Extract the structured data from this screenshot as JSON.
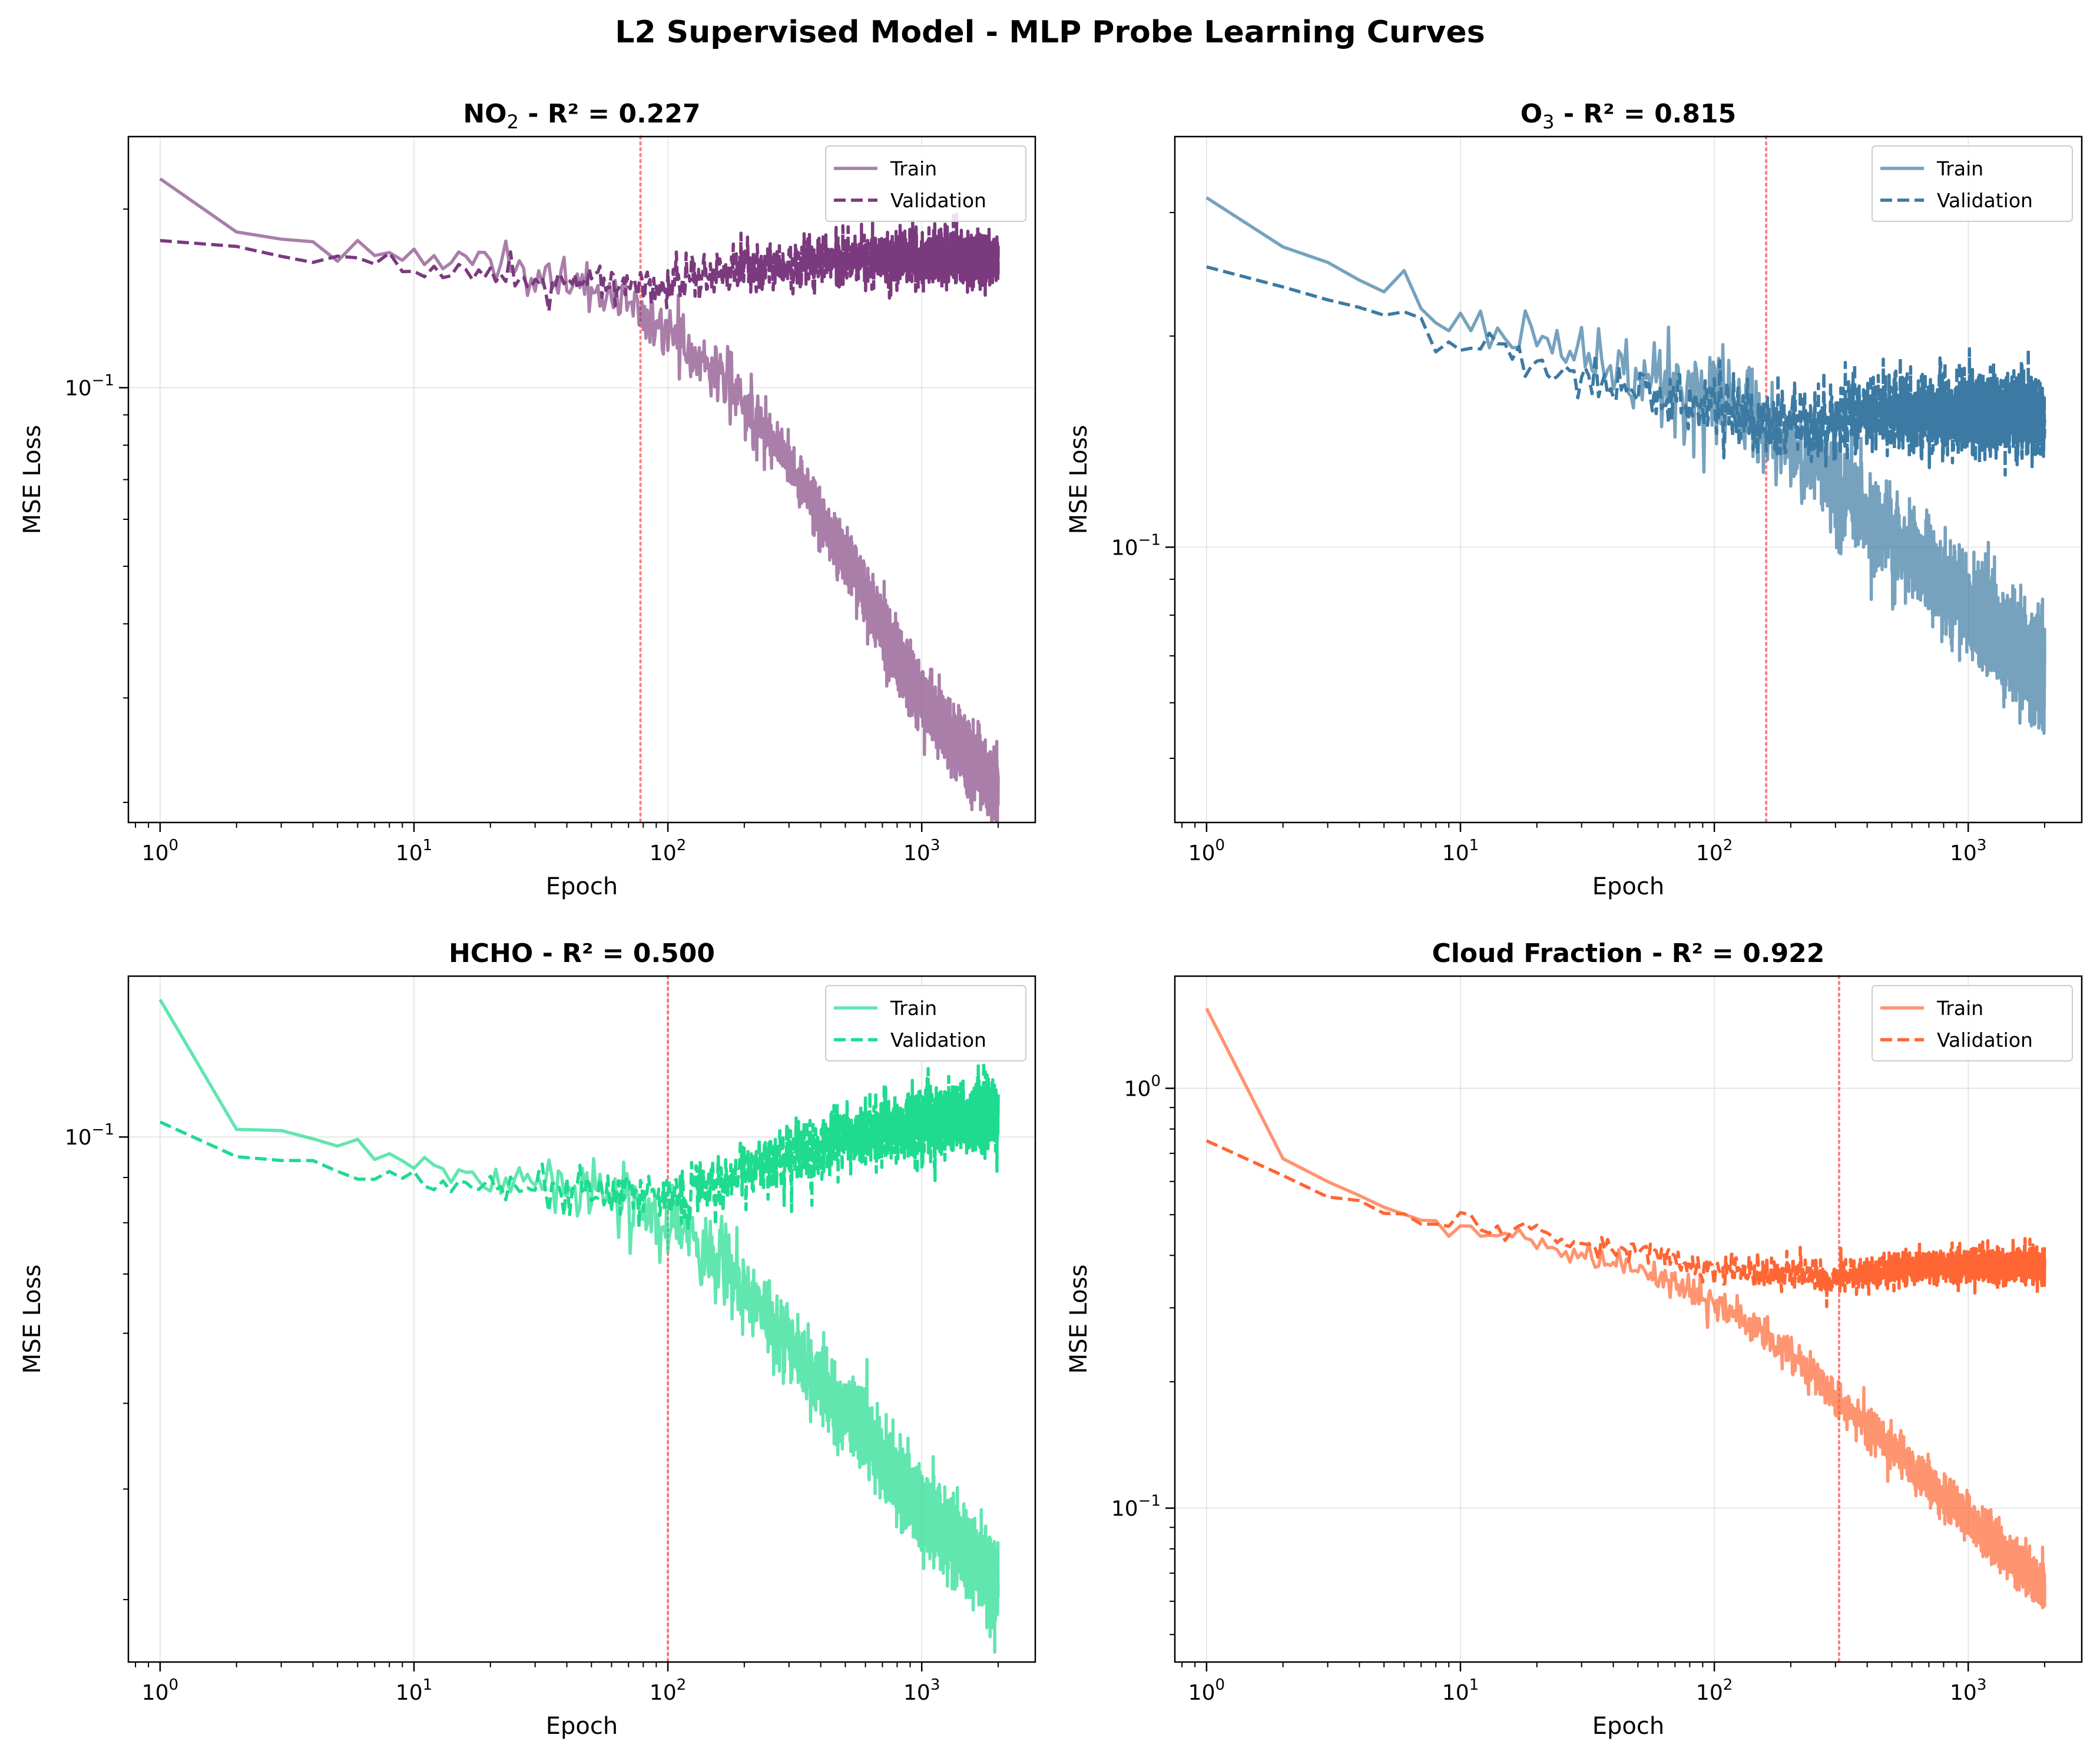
{
  "figure": {
    "title": "L2 Supervised Model - MLP Probe Learning Curves"
  },
  "chart_data": [
    {
      "type": "line",
      "title_main": "NO",
      "title_sub": "2",
      "title_rest": " - R² = 0.227",
      "xlabel": "Epoch",
      "ylabel": "MSE Loss",
      "xscale": "log",
      "yscale": "log",
      "xlim": [
        0.75,
        2800
      ],
      "ylim": [
        0.0185,
        0.265
      ],
      "x_ticks": [
        {
          "label_base": "10",
          "label_exp": "0"
        },
        {
          "label_base": "10",
          "label_exp": "1"
        },
        {
          "label_base": "10",
          "label_exp": "2"
        },
        {
          "label_base": "10",
          "label_exp": "3"
        }
      ],
      "y_ticks": [
        {
          "label_base": "10",
          "label_exp": "−1"
        }
      ],
      "grid": true,
      "legend": "top-right",
      "best_epoch": 78,
      "color": "#7b3a7d",
      "noise": 0.055,
      "series": [
        {
          "name": "Train",
          "style": "solid",
          "alpha": 0.65,
          "points": [
            [
              1,
              0.225
            ],
            [
              2,
              0.183
            ],
            [
              3,
              0.177
            ],
            [
              4,
              0.174
            ],
            [
              6,
              0.172
            ],
            [
              7,
              0.168
            ],
            [
              10,
              0.166
            ],
            [
              20,
              0.161
            ],
            [
              30,
              0.156
            ],
            [
              50,
              0.147
            ],
            [
              78,
              0.134
            ],
            [
              100,
              0.124
            ],
            [
              150,
              0.108
            ],
            [
              200,
              0.095
            ],
            [
              300,
              0.075
            ],
            [
              500,
              0.052
            ],
            [
              700,
              0.039
            ],
            [
              1000,
              0.03
            ],
            [
              1500,
              0.024
            ],
            [
              2000,
              0.021
            ]
          ]
        },
        {
          "name": "Validation",
          "style": "dashed",
          "alpha": 1.0,
          "points": [
            [
              1,
              0.177
            ],
            [
              2,
              0.173
            ],
            [
              3,
              0.167
            ],
            [
              5,
              0.164
            ],
            [
              8,
              0.163
            ],
            [
              10,
              0.158
            ],
            [
              20,
              0.156
            ],
            [
              30,
              0.152
            ],
            [
              50,
              0.15
            ],
            [
              78,
              0.149
            ],
            [
              100,
              0.151
            ],
            [
              150,
              0.155
            ],
            [
              200,
              0.158
            ],
            [
              300,
              0.161
            ],
            [
              500,
              0.164
            ],
            [
              1000,
              0.165
            ],
            [
              2000,
              0.164
            ]
          ]
        }
      ]
    },
    {
      "type": "line",
      "title_main": "O",
      "title_sub": "3",
      "title_rest": " - R² = 0.815",
      "xlabel": "Epoch",
      "ylabel": "MSE Loss",
      "xscale": "log",
      "yscale": "log",
      "xlim": [
        0.75,
        2800
      ],
      "ylim": [
        0.0405,
        0.385
      ],
      "x_ticks": [
        {
          "label_base": "10",
          "label_exp": "0"
        },
        {
          "label_base": "10",
          "label_exp": "1"
        },
        {
          "label_base": "10",
          "label_exp": "2"
        },
        {
          "label_base": "10",
          "label_exp": "3"
        }
      ],
      "y_ticks": [
        {
          "label_base": "10",
          "label_exp": "−1"
        }
      ],
      "grid": true,
      "legend": "top-right",
      "best_epoch": 160,
      "color": "#3c7aa3",
      "noise": 0.07,
      "series": [
        {
          "name": "Train",
          "style": "solid",
          "alpha": 0.7,
          "points": [
            [
              1,
              0.315
            ],
            [
              2,
              0.268
            ],
            [
              4,
              0.242
            ],
            [
              6,
              0.232
            ],
            [
              8,
              0.219
            ],
            [
              10,
              0.212
            ],
            [
              20,
              0.194
            ],
            [
              40,
              0.18
            ],
            [
              70,
              0.17
            ],
            [
              100,
              0.162
            ],
            [
              160,
              0.148
            ],
            [
              200,
              0.139
            ],
            [
              300,
              0.123
            ],
            [
              500,
              0.103
            ],
            [
              700,
              0.093
            ],
            [
              1000,
              0.082
            ],
            [
              1500,
              0.072
            ],
            [
              2000,
              0.066
            ]
          ]
        },
        {
          "name": "Validation",
          "style": "dashed",
          "alpha": 1.0,
          "points": [
            [
              1,
              0.251
            ],
            [
              2,
              0.235
            ],
            [
              4,
              0.219
            ],
            [
              5,
              0.221
            ],
            [
              6,
              0.208
            ],
            [
              8,
              0.196
            ],
            [
              10,
              0.193
            ],
            [
              20,
              0.182
            ],
            [
              30,
              0.175
            ],
            [
              50,
              0.166
            ],
            [
              80,
              0.161
            ],
            [
              120,
              0.154
            ],
            [
              160,
              0.15
            ],
            [
              200,
              0.151
            ],
            [
              300,
              0.153
            ],
            [
              500,
              0.155
            ],
            [
              1000,
              0.156
            ],
            [
              2000,
              0.155
            ]
          ]
        }
      ]
    },
    {
      "type": "line",
      "title_main": "HCHO - R² = 0.500",
      "title_sub": "",
      "title_rest": "",
      "xlabel": "Epoch",
      "ylabel": "MSE Loss",
      "xscale": "log",
      "yscale": "log",
      "xlim": [
        0.75,
        2800
      ],
      "ylim": [
        0.0255,
        0.152
      ],
      "x_ticks": [
        {
          "label_base": "10",
          "label_exp": "0"
        },
        {
          "label_base": "10",
          "label_exp": "1"
        },
        {
          "label_base": "10",
          "label_exp": "2"
        },
        {
          "label_base": "10",
          "label_exp": "3"
        }
      ],
      "y_ticks": [
        {
          "label_base": "10",
          "label_exp": "−1"
        }
      ],
      "grid": true,
      "legend": "top-right",
      "best_epoch": 100,
      "color": "#1edb8f",
      "noise": 0.045,
      "series": [
        {
          "name": "Train",
          "style": "solid",
          "alpha": 0.7,
          "points": [
            [
              1,
              0.143
            ],
            [
              2,
              0.102
            ],
            [
              3,
              0.099
            ],
            [
              5,
              0.097
            ],
            [
              8,
              0.095
            ],
            [
              10,
              0.093
            ],
            [
              20,
              0.09
            ],
            [
              40,
              0.087
            ],
            [
              70,
              0.083
            ],
            [
              100,
              0.079
            ],
            [
              150,
              0.073
            ],
            [
              200,
              0.067
            ],
            [
              300,
              0.058
            ],
            [
              500,
              0.049
            ],
            [
              700,
              0.043
            ],
            [
              1000,
              0.038
            ],
            [
              1500,
              0.034
            ],
            [
              2000,
              0.031
            ]
          ]
        },
        {
          "name": "Validation",
          "style": "dashed",
          "alpha": 1.0,
          "points": [
            [
              1,
              0.104
            ],
            [
              2,
              0.095
            ],
            [
              4,
              0.093
            ],
            [
              7,
              0.09
            ],
            [
              10,
              0.089
            ],
            [
              20,
              0.088
            ],
            [
              40,
              0.087
            ],
            [
              70,
              0.086
            ],
            [
              100,
              0.085
            ],
            [
              150,
              0.088
            ],
            [
              200,
              0.091
            ],
            [
              300,
              0.095
            ],
            [
              500,
              0.1
            ],
            [
              1000,
              0.104
            ],
            [
              2000,
              0.106
            ]
          ]
        }
      ]
    },
    {
      "type": "line",
      "title_main": "Cloud Fraction - R² = 0.922",
      "title_sub": "",
      "title_rest": "",
      "xlabel": "Epoch",
      "ylabel": "MSE Loss",
      "xscale": "log",
      "yscale": "log",
      "xlim": [
        0.75,
        2800
      ],
      "ylim": [
        0.043,
        1.85
      ],
      "x_ticks": [
        {
          "label_base": "10",
          "label_exp": "0"
        },
        {
          "label_base": "10",
          "label_exp": "1"
        },
        {
          "label_base": "10",
          "label_exp": "2"
        },
        {
          "label_base": "10",
          "label_exp": "3"
        }
      ],
      "y_ticks": [
        {
          "label_base": "10",
          "label_exp": "0"
        },
        {
          "label_base": "10",
          "label_exp": "−1"
        }
      ],
      "grid": true,
      "legend": "top-right",
      "best_epoch": 310,
      "color": "#ff6633",
      "noise": 0.05,
      "series": [
        {
          "name": "Train",
          "style": "solid",
          "alpha": 0.7,
          "points": [
            [
              1,
              1.55
            ],
            [
              2,
              0.68
            ],
            [
              3,
              0.6
            ],
            [
              5,
              0.52
            ],
            [
              8,
              0.48
            ],
            [
              10,
              0.47
            ],
            [
              20,
              0.43
            ],
            [
              40,
              0.39
            ],
            [
              70,
              0.35
            ],
            [
              100,
              0.31
            ],
            [
              150,
              0.27
            ],
            [
              200,
              0.23
            ],
            [
              310,
              0.18
            ],
            [
              500,
              0.14
            ],
            [
              700,
              0.115
            ],
            [
              1000,
              0.094
            ],
            [
              1500,
              0.076
            ],
            [
              2000,
              0.064
            ]
          ]
        },
        {
          "name": "Validation",
          "style": "dashed",
          "alpha": 1.0,
          "points": [
            [
              1,
              0.75
            ],
            [
              2,
              0.62
            ],
            [
              3,
              0.55
            ],
            [
              5,
              0.52
            ],
            [
              8,
              0.48
            ],
            [
              10,
              0.5
            ],
            [
              15,
              0.44
            ],
            [
              20,
              0.46
            ],
            [
              30,
              0.42
            ],
            [
              50,
              0.41
            ],
            [
              80,
              0.38
            ],
            [
              120,
              0.37
            ],
            [
              200,
              0.36
            ],
            [
              310,
              0.355
            ],
            [
              500,
              0.37
            ],
            [
              1000,
              0.38
            ],
            [
              2000,
              0.38
            ]
          ]
        }
      ]
    }
  ]
}
